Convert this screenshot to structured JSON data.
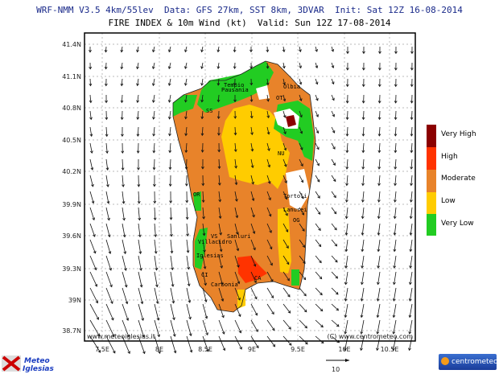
{
  "header": {
    "line1": "WRF-NMM V3.5 4km/55lev  Data: GFS 27km, SST 8km, 3DVAR  Init: Sat 12Z 16-08-2014",
    "line2": "FIRE INDEX & 10m Wind (kt)  Valid: Sun 12Z 17-08-2014"
  },
  "map": {
    "lat_ticks": [
      "41.4N",
      "41.1N",
      "40.8N",
      "40.5N",
      "40.2N",
      "39.9N",
      "39.6N",
      "39.3N",
      "39N",
      "38.7N"
    ],
    "lon_ticks": [
      "7.5E",
      "8E",
      "8.5E",
      "9E",
      "9.5E",
      "10E",
      "10.5E"
    ],
    "credit_left": "www.meteoiglesias.it",
    "credit_right": "(C) www.centrometeo.com",
    "cities": [
      "Tempio",
      "Pausania",
      "Olbia",
      "OT",
      "SS",
      "NU",
      "OR",
      "Tortoli",
      "Lanusei",
      "OG",
      "VS",
      "Sanluri",
      "Villacidro",
      "Iglesias",
      "CI",
      "CA",
      "Carbonia"
    ],
    "wind_reference": "10"
  },
  "legend": {
    "items": [
      {
        "label": "Very High",
        "color": "#8b0000"
      },
      {
        "label": "High",
        "color": "#ff3300"
      },
      {
        "label": "Moderate",
        "color": "#e8832a"
      },
      {
        "label": "Low",
        "color": "#ffcc00"
      },
      {
        "label": "Very Low",
        "color": "#22cc22"
      }
    ]
  },
  "logos": {
    "left": "Meteo Iglesias",
    "right": "centrometeo"
  }
}
